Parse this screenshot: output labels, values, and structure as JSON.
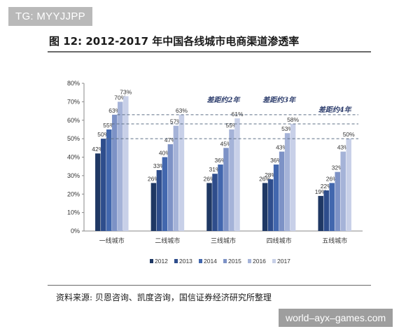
{
  "watermark_top": "TG: MYYJJPP",
  "watermark_bottom": "world–ayx–games.com",
  "title": "图 12:  2012-2017 年中国各线城市电商渠道渗透率",
  "source": "资料来源:  贝恩咨询、凯度咨询，国信证券经济研究所整理",
  "colors": [
    "#1f3864",
    "#2e4d8c",
    "#4267ae",
    "#7d92c6",
    "#a5b3d8",
    "#c8d0e8"
  ],
  "chart_data": {
    "type": "bar",
    "categories": [
      "一线城市",
      "二线城市",
      "三线城市",
      "四线城市",
      "五线城市"
    ],
    "series": [
      {
        "name": "2012",
        "values": [
          42,
          26,
          26,
          26,
          19
        ]
      },
      {
        "name": "2013",
        "values": [
          50,
          33,
          31,
          28,
          22
        ]
      },
      {
        "name": "2014",
        "values": [
          55,
          40,
          36,
          36,
          26
        ]
      },
      {
        "name": "2015",
        "values": [
          63,
          47,
          45,
          43,
          32
        ]
      },
      {
        "name": "2016",
        "values": [
          70,
          57,
          55,
          53,
          43
        ]
      },
      {
        "name": "2017",
        "values": [
          73,
          63,
          61,
          58,
          50
        ]
      }
    ],
    "ylim": [
      0,
      80
    ],
    "yticks": [
      "0%",
      "10%",
      "20%",
      "30%",
      "40%",
      "50%",
      "60%",
      "70%",
      "80%"
    ],
    "reference_lines": [
      63,
      58,
      50
    ],
    "annotations": [
      {
        "text": "差距约2年",
        "category": 2
      },
      {
        "text": "差距约3年",
        "category": 3
      },
      {
        "text": "差距约4年",
        "category": 4
      }
    ],
    "legend_position": "bottom",
    "grid": false
  }
}
